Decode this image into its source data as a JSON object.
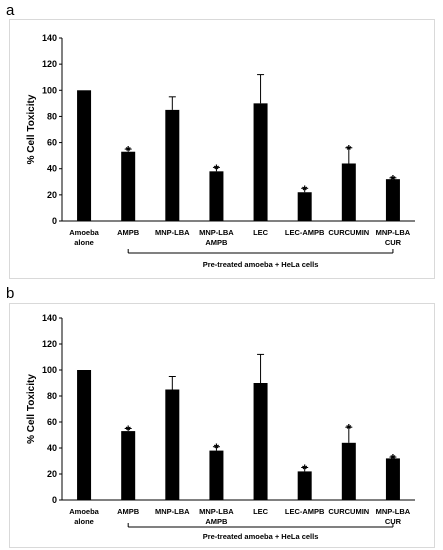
{
  "panels": [
    {
      "letter": "a"
    },
    {
      "letter": "b"
    }
  ],
  "chart_data": [
    {
      "type": "bar",
      "title": "",
      "ylabel": "% Cell Toxicity",
      "xlabel": "",
      "group_label": "Pre-treated amoeba + HeLa cells",
      "ylim": [
        0,
        140
      ],
      "yticks": [
        0,
        20,
        40,
        60,
        80,
        100,
        120,
        140
      ],
      "categories": [
        [
          "Amoeba",
          "alone"
        ],
        [
          "AMPB"
        ],
        [
          "MNP-LBA"
        ],
        [
          "MNP-LBA",
          "AMPB"
        ],
        [
          "LEC"
        ],
        [
          "LEC-AMPB"
        ],
        [
          "CURCUMIN"
        ],
        [
          "MNP-LBA",
          "CUR"
        ]
      ],
      "values": [
        100,
        53,
        85,
        38,
        90,
        22,
        44,
        32
      ],
      "errors": [
        0,
        2,
        10,
        3,
        22,
        3,
        12,
        1
      ],
      "significance": [
        "",
        "*",
        "",
        "*",
        "",
        "*",
        "*",
        "*"
      ],
      "bar_color": "#000000",
      "grid": false,
      "legend": "none"
    },
    {
      "type": "bar",
      "title": "",
      "ylabel": "% Cell Toxicity",
      "xlabel": "",
      "group_label": "Pre-treated amoeba + HeLa cells",
      "ylim": [
        0,
        140
      ],
      "yticks": [
        0,
        20,
        40,
        60,
        80,
        100,
        120,
        140
      ],
      "categories": [
        [
          "Amoeba",
          "alone"
        ],
        [
          "AMPB"
        ],
        [
          "MNP-LBA"
        ],
        [
          "MNP-LBA",
          "AMPB"
        ],
        [
          "LEC"
        ],
        [
          "LEC-AMPB"
        ],
        [
          "CURCUMIN"
        ],
        [
          "MNP-LBA",
          "CUR"
        ]
      ],
      "values": [
        100,
        53,
        85,
        38,
        90,
        22,
        44,
        32
      ],
      "errors": [
        0,
        2,
        10,
        3,
        22,
        3,
        12,
        1
      ],
      "significance": [
        "",
        "*",
        "",
        "*",
        "",
        "*",
        "*",
        "*"
      ],
      "bar_color": "#000000",
      "grid": false,
      "legend": "none"
    }
  ]
}
